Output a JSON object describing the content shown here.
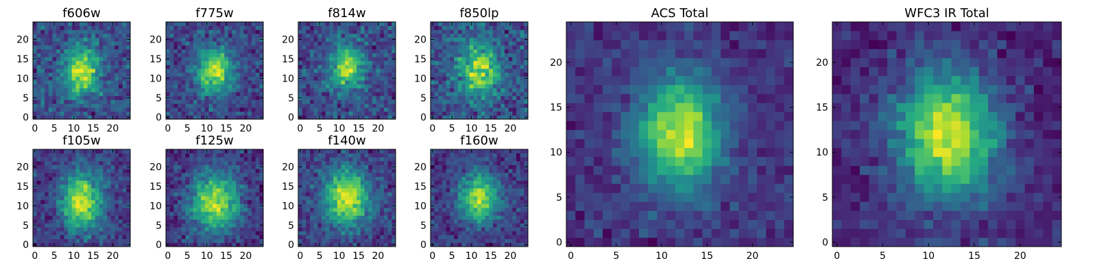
{
  "figure": {
    "colormap": "viridis",
    "colors": {
      "low": "#440154",
      "mid": "#21908d",
      "high": "#fde725",
      "axis": "#000000"
    }
  },
  "chart_data": [
    {
      "type": "heatmap",
      "title": "f606w",
      "grid": [
        25,
        25
      ],
      "xlim": [
        0,
        25
      ],
      "ylim": [
        0,
        25
      ],
      "xticks": [
        0,
        5,
        10,
        15,
        20
      ],
      "yticks": [
        0,
        5,
        10,
        15,
        20
      ],
      "peak": [
        12,
        12
      ],
      "spread": [
        3.2,
        4.2
      ],
      "noise": 0.42,
      "base": 0.62,
      "seed": 11
    },
    {
      "type": "heatmap",
      "title": "f775w",
      "grid": [
        25,
        25
      ],
      "xlim": [
        0,
        25
      ],
      "ylim": [
        0,
        25
      ],
      "xticks": [
        0,
        5,
        10,
        15,
        20
      ],
      "yticks": [
        0,
        5,
        10,
        15,
        20
      ],
      "peak": [
        12,
        12
      ],
      "spread": [
        3.2,
        4.2
      ],
      "noise": 0.38,
      "base": 0.58,
      "seed": 23
    },
    {
      "type": "heatmap",
      "title": "f814w",
      "grid": [
        25,
        25
      ],
      "xlim": [
        0,
        25
      ],
      "ylim": [
        0,
        25
      ],
      "xticks": [
        0,
        5,
        10,
        15,
        20
      ],
      "yticks": [
        0,
        5,
        10,
        15,
        20
      ],
      "peak": [
        12,
        13
      ],
      "spread": [
        3.0,
        4.0
      ],
      "noise": 0.45,
      "base": 0.48,
      "seed": 37
    },
    {
      "type": "heatmap",
      "title": "f850lp",
      "grid": [
        25,
        25
      ],
      "xlim": [
        0,
        25
      ],
      "ylim": [
        0,
        25
      ],
      "xticks": [
        0,
        5,
        10,
        15,
        20
      ],
      "yticks": [
        0,
        5,
        10,
        15,
        20
      ],
      "peak": [
        12,
        12
      ],
      "spread": [
        3.5,
        4.5
      ],
      "noise": 0.5,
      "base": 0.6,
      "seed": 41
    },
    {
      "type": "heatmap",
      "title": "f105w",
      "grid": [
        25,
        25
      ],
      "xlim": [
        0,
        25
      ],
      "ylim": [
        0,
        25
      ],
      "xticks": [
        0,
        5,
        10,
        15,
        20
      ],
      "yticks": [
        0,
        5,
        10,
        15,
        20
      ],
      "peak": [
        12,
        11
      ],
      "spread": [
        3.5,
        5.0
      ],
      "noise": 0.3,
      "base": 0.5,
      "seed": 53
    },
    {
      "type": "heatmap",
      "title": "f125w",
      "grid": [
        25,
        25
      ],
      "xlim": [
        0,
        25
      ],
      "ylim": [
        0,
        25
      ],
      "xticks": [
        0,
        5,
        10,
        15,
        20
      ],
      "yticks": [
        0,
        5,
        10,
        15,
        20
      ],
      "peak": [
        12,
        11
      ],
      "spread": [
        4.5,
        5.5
      ],
      "noise": 0.32,
      "base": 0.58,
      "seed": 67
    },
    {
      "type": "heatmap",
      "title": "f140w",
      "grid": [
        25,
        25
      ],
      "xlim": [
        0,
        25
      ],
      "ylim": [
        0,
        25
      ],
      "xticks": [
        0,
        5,
        10,
        15,
        20
      ],
      "yticks": [
        0,
        5,
        10,
        15,
        20
      ],
      "peak": [
        12,
        12
      ],
      "spread": [
        4.0,
        5.0
      ],
      "noise": 0.32,
      "base": 0.55,
      "seed": 79
    },
    {
      "type": "heatmap",
      "title": "f160w",
      "grid": [
        25,
        25
      ],
      "xlim": [
        0,
        25
      ],
      "ylim": [
        0,
        25
      ],
      "xticks": [
        0,
        5,
        10,
        15,
        20
      ],
      "yticks": [
        0,
        5,
        10,
        15,
        20
      ],
      "peak": [
        12,
        12
      ],
      "spread": [
        3.5,
        4.5
      ],
      "noise": 0.32,
      "base": 0.5,
      "seed": 83
    },
    {
      "type": "heatmap",
      "title": "ACS Total",
      "grid": [
        25,
        25
      ],
      "xlim": [
        0,
        25
      ],
      "ylim": [
        0,
        25
      ],
      "xticks": [
        0,
        5,
        10,
        15,
        20
      ],
      "yticks": [
        0,
        5,
        10,
        15,
        20
      ],
      "peak": [
        12,
        12
      ],
      "spread": [
        3.2,
        4.2
      ],
      "noise": 0.22,
      "base": 0.35,
      "seed": 97
    },
    {
      "type": "heatmap",
      "title": "WFC3 IR Total",
      "grid": [
        25,
        25
      ],
      "xlim": [
        0,
        25
      ],
      "ylim": [
        0,
        25
      ],
      "xticks": [
        0,
        5,
        10,
        15,
        20
      ],
      "yticks": [
        0,
        5,
        10,
        15,
        20
      ],
      "peak": [
        12,
        12
      ],
      "spread": [
        3.8,
        5.0
      ],
      "noise": 0.22,
      "base": 0.35,
      "seed": 103
    }
  ]
}
